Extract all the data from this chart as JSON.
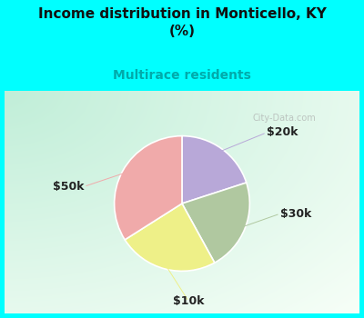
{
  "title": "Income distribution in Monticello, KY\n(%)",
  "subtitle": "Multirace residents",
  "title_fontsize": 11,
  "subtitle_fontsize": 10,
  "title_color": "#111111",
  "subtitle_color": "#00aaaa",
  "bg_top_color": "#00FFFF",
  "slices": [
    {
      "label": "$20k",
      "value": 20,
      "color": "#b8a8d8"
    },
    {
      "label": "$30k",
      "value": 22,
      "color": "#b0c8a0"
    },
    {
      "label": "$10k",
      "value": 24,
      "color": "#eef088"
    },
    {
      "label": "$50k",
      "value": 34,
      "color": "#f0aaaa"
    }
  ],
  "label_fontsize": 9,
  "label_color": "#222222",
  "watermark": "City-Data.com",
  "watermark_color": "#aaaaaa"
}
